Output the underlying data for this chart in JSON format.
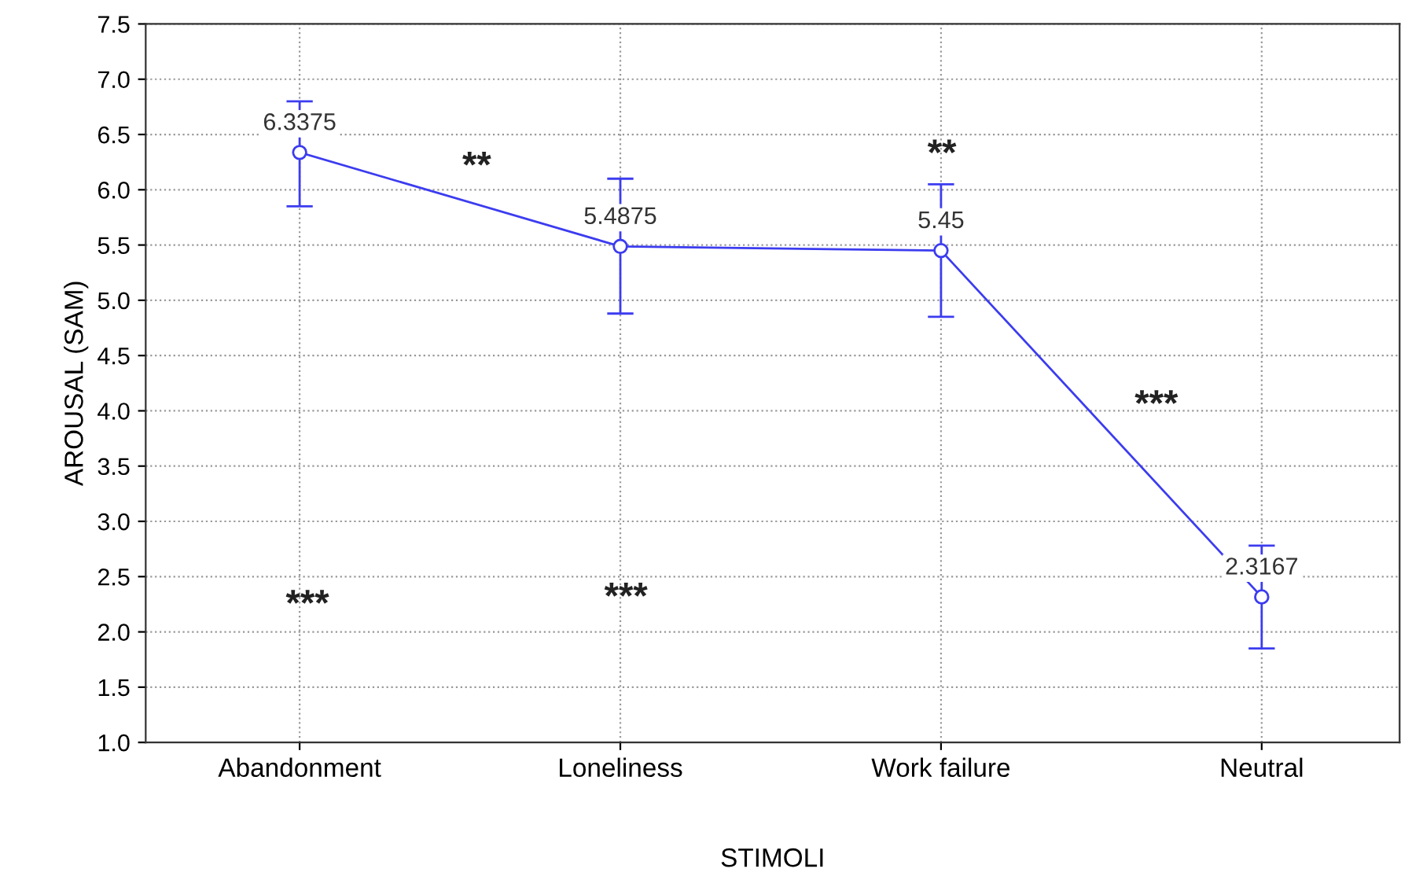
{
  "chart_data": {
    "type": "line",
    "xlabel": "STIMOLI",
    "ylabel": "AROUSAL (SAM)",
    "categories": [
      "Abandonment",
      "Loneliness",
      "Work failure",
      "Neutral"
    ],
    "values": [
      6.3375,
      5.4875,
      5.45,
      2.3167
    ],
    "errors": [
      [
        5.85,
        6.8
      ],
      [
        4.88,
        6.1
      ],
      [
        4.85,
        6.05
      ],
      [
        1.85,
        2.78
      ]
    ],
    "color": "#3c3cf0",
    "marker": "circle",
    "line_style": "solid",
    "data_labels": true,
    "grid": true,
    "ylim": [
      1.0,
      7.5
    ],
    "yticks": [
      {
        "value": 1.0,
        "label": "1.0"
      },
      {
        "value": 1.5,
        "label": "1.5"
      },
      {
        "value": 2.0,
        "label": "2.0"
      },
      {
        "value": 2.5,
        "label": "2.5"
      },
      {
        "value": 3.0,
        "label": "3.0"
      },
      {
        "value": 3.5,
        "label": "3.5"
      },
      {
        "value": 4.0,
        "label": "4.0"
      },
      {
        "value": 4.5,
        "label": "4.5"
      },
      {
        "value": 5.0,
        "label": "5.0"
      },
      {
        "value": 5.5,
        "label": "5.5"
      },
      {
        "value": 6.0,
        "label": "6.0"
      },
      {
        "value": 6.5,
        "label": "6.5"
      },
      {
        "value": 7.0,
        "label": "7.0"
      },
      {
        "value": 7.5,
        "label": "7.5"
      }
    ],
    "annotations": [
      "**",
      "**",
      "***",
      "***",
      "***"
    ]
  }
}
